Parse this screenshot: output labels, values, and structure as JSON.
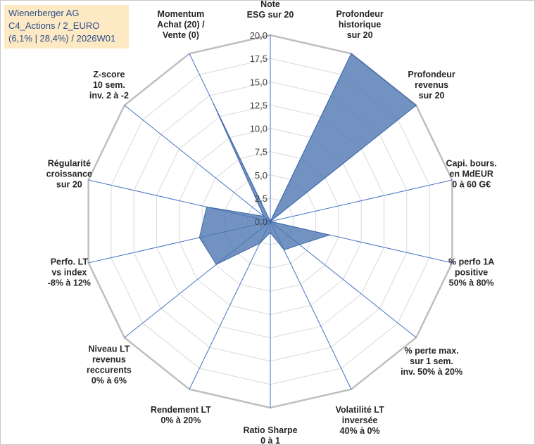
{
  "title": {
    "line1": "Wienerberger AG",
    "line2": "C4_Actions / 2_EURO",
    "line3": "(6,1% | 28,4%) / 2026W01"
  },
  "chart_data": {
    "type": "radar",
    "axes": [
      {
        "label": [
          "Note",
          "ESG sur 20"
        ]
      },
      {
        "label": [
          "Profondeur",
          "historique",
          "sur 20"
        ]
      },
      {
        "label": [
          "Profondeur",
          "revenus",
          "sur 20"
        ]
      },
      {
        "label": [
          "Capi. bours.",
          "en MdEUR",
          "0 à 60 G€"
        ]
      },
      {
        "label": [
          "% perfo 1A",
          "positive",
          "50% à 80%"
        ]
      },
      {
        "label": [
          "% perte max.",
          "sur 1 sem.",
          "inv. 50% à 20%"
        ]
      },
      {
        "label": [
          "Volatilité LT",
          "inversée",
          "40% à 0%"
        ]
      },
      {
        "label": [
          "Ratio Sharpe",
          "0 à 1"
        ]
      },
      {
        "label": [
          "Rendement LT",
          "0% à 20%"
        ]
      },
      {
        "label": [
          "Niveau LT",
          "revenus",
          "reccurents",
          "0% à 6%"
        ]
      },
      {
        "label": [
          "Perfo. LT",
          "vs index",
          "-8% à 12%"
        ]
      },
      {
        "label": [
          "Régularité",
          "croissance",
          "sur 20"
        ]
      },
      {
        "label": [
          "Z-score",
          "10 sem.",
          "inv. 2 à -2"
        ]
      },
      {
        "label": [
          "Momentum",
          "Achat (20) /",
          "Vente (0)"
        ]
      }
    ],
    "series": [
      {
        "values": [
          0,
          20,
          20,
          0,
          6.5,
          4,
          3.4,
          1.2,
          2.6,
          7.4,
          7.8,
          7,
          0.9,
          14
        ]
      }
    ],
    "rmin": 0,
    "rmax": 20,
    "ticks": [
      "0,0",
      "2,5",
      "5,0",
      "7,5",
      "10,0",
      "12,5",
      "15,0",
      "17,5",
      "20,0"
    ],
    "colors": {
      "fill": "#4a74b0",
      "fillOpacity": "0.78",
      "stroke": "#3e67a8",
      "ring": "#d9d9d9",
      "outerRing": "#bfbfbf",
      "spoke": "#4472c4"
    }
  }
}
